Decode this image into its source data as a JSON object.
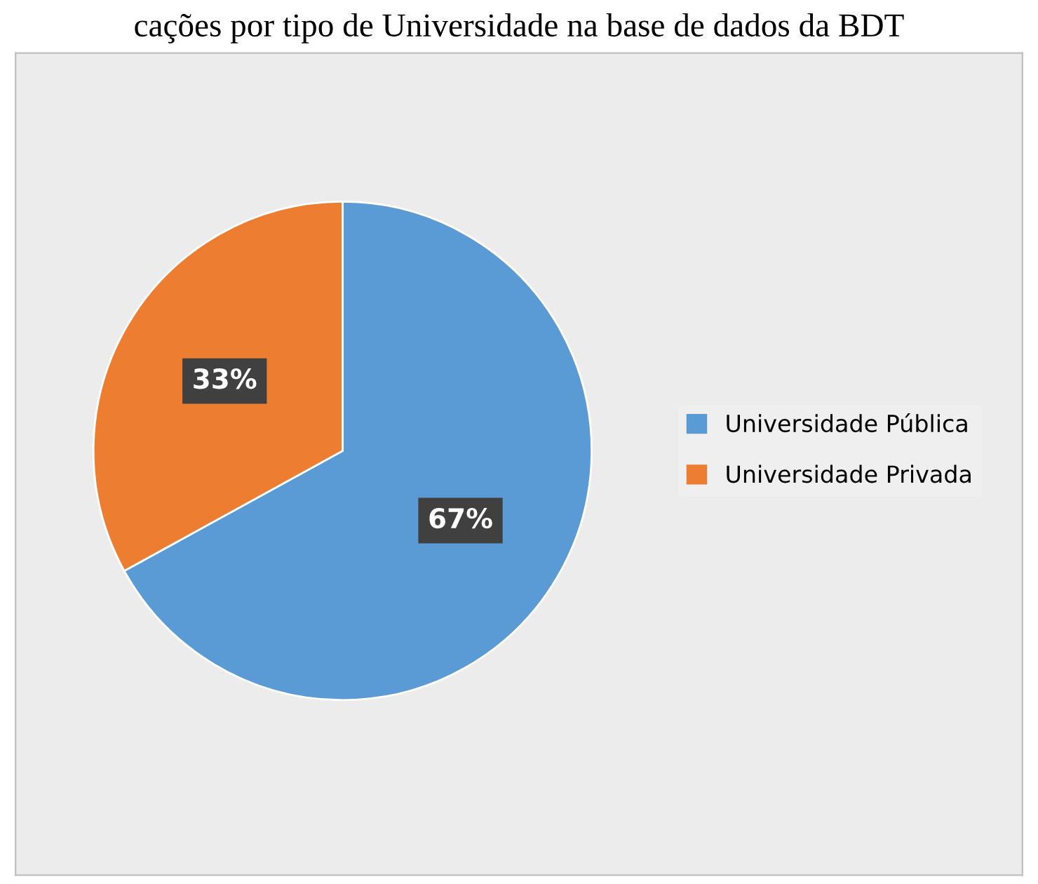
{
  "chart_data": {
    "type": "pie",
    "title": "cações por tipo de Universidade na base de dados da BDT",
    "categories": [
      "Universidade Pública",
      "Universidade Privada"
    ],
    "values": [
      67,
      33
    ],
    "colors": [
      "#5b9bd5",
      "#ed7d31"
    ],
    "value_labels": [
      "67%",
      "33%"
    ],
    "legend": "right"
  }
}
